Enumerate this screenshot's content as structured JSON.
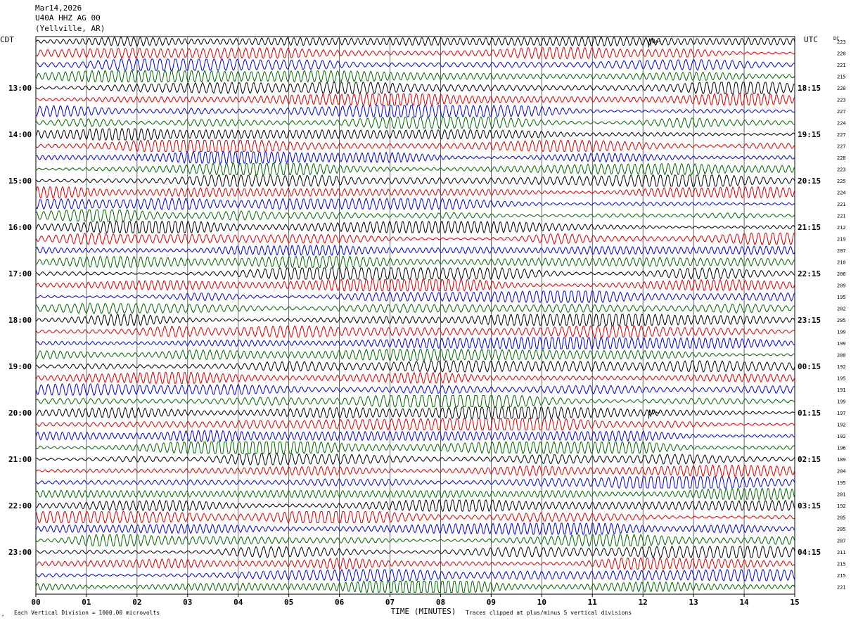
{
  "header": {
    "date": "Mar14,2026",
    "station": "U40A HHZ AG 00",
    "location": "(Yellville, AR)"
  },
  "labels": {
    "left_tz": "CDT",
    "right_tz": "UTC",
    "dc": "DC"
  },
  "footer": {
    "scale": "Each Vertical Division = 1000.00 microvolts",
    "xlabel": "TIME (MINUTES)",
    "clip_note": "Traces clipped at plus/minus 5 vertical divisions"
  },
  "colors": [
    "#000000",
    "#d40000",
    "#0000d0",
    "#006600"
  ],
  "chart_data": {
    "type": "line",
    "title": "U40A HHZ AG 00",
    "xlabel": "TIME (MINUTES)",
    "x_ticks": [
      "00",
      "01",
      "02",
      "03",
      "04",
      "05",
      "06",
      "07",
      "08",
      "09",
      "10",
      "11",
      "12",
      "13",
      "14",
      "15"
    ],
    "xlim": [
      0,
      15
    ],
    "grid": true,
    "left_hour_labels": [
      "13:00",
      "14:00",
      "15:00",
      "16:00",
      "17:00",
      "18:00",
      "19:00",
      "20:00",
      "21:00",
      "22:00",
      "23:00"
    ],
    "right_hour_labels": [
      "18:15",
      "19:15",
      "20:15",
      "21:15",
      "22:15",
      "23:15",
      "00:15",
      "01:15",
      "02:15",
      "03:15",
      "04:15"
    ],
    "dc_values": [
      "223",
      "220",
      "221",
      "215",
      "220",
      "223",
      "227",
      "224",
      "227",
      "227",
      "228",
      "223",
      "225",
      "224",
      "221",
      "221",
      "212",
      "219",
      "207",
      "210",
      "206",
      "209",
      "195",
      "202",
      "205",
      "199",
      "199",
      "200",
      "192",
      "195",
      "191",
      "199",
      "197",
      "192",
      "192",
      "196",
      "189",
      "204",
      "195",
      "201",
      "192",
      "205",
      "205",
      "207",
      "211",
      "215",
      "215",
      "221"
    ],
    "events": [
      {
        "trace": 0,
        "minute": 12.1,
        "label": ""
      },
      {
        "trace": 32,
        "minute": 12.1,
        "label": ""
      }
    ]
  }
}
